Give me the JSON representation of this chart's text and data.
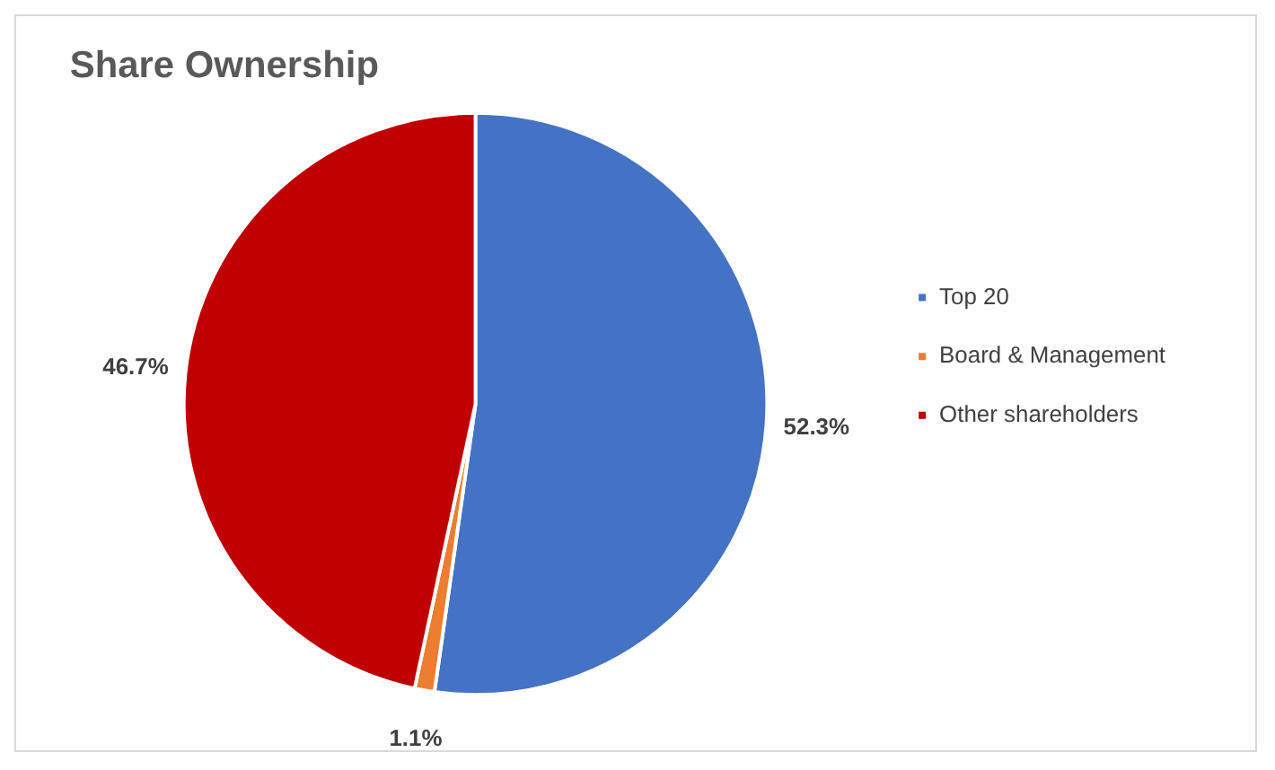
{
  "chart_data": {
    "type": "pie",
    "title": "Share Ownership",
    "categories": [
      "Top 20",
      "Board & Management",
      "Other shareholders"
    ],
    "values": [
      52.3,
      1.1,
      46.7
    ],
    "colors": [
      "#4472c4",
      "#ed7d31",
      "#c00000"
    ],
    "value_labels": [
      "52.3%",
      "1.1%",
      "46.7%"
    ],
    "legend": "right"
  }
}
